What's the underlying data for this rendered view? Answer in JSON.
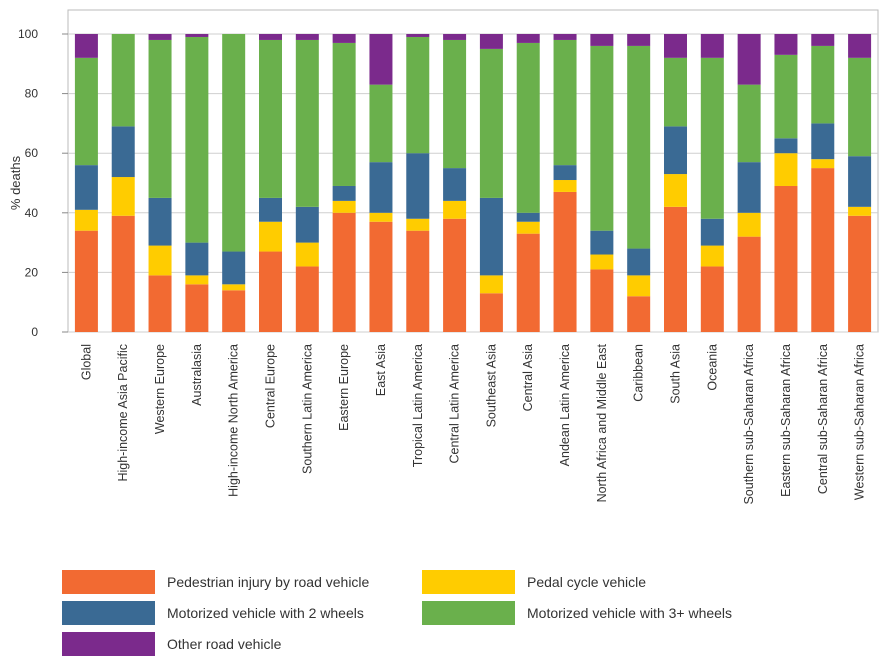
{
  "chart_data": {
    "type": "bar",
    "stacked": true,
    "ylabel": "% deaths",
    "xlabel": "",
    "ylim": [
      0,
      100
    ],
    "yticks": [
      0,
      20,
      40,
      60,
      80,
      100
    ],
    "grid": true,
    "legend_position": "bottom",
    "categories": [
      "Global",
      "High-income Asia Pacific",
      "Western Europe",
      "Australasia",
      "High-income North America",
      "Central Europe",
      "Southern Latin America",
      "Eastern Europe",
      "East Asia",
      "Tropical Latin America",
      "Central Latin America",
      "Southeast Asia",
      "Central Asia",
      "Andean Latin America",
      "North Africa and Middle East",
      "Caribbean",
      "South Asia",
      "Oceania",
      "Southern sub-Saharan Africa",
      "Eastern sub-Saharan Africa",
      "Central sub-Saharan Africa",
      "Western sub-Saharan Africa"
    ],
    "series": [
      {
        "name": "Pedestrian injury by road vehicle",
        "color": "#f26a32",
        "values": [
          34,
          39,
          19,
          16,
          14,
          27,
          22,
          40,
          37,
          34,
          38,
          13,
          33,
          47,
          21,
          12,
          42,
          22,
          32,
          49,
          55,
          39
        ]
      },
      {
        "name": "Pedal cycle vehicle",
        "color": "#ffcc00",
        "values": [
          7,
          13,
          10,
          3,
          2,
          10,
          8,
          4,
          3,
          4,
          6,
          6,
          4,
          4,
          5,
          7,
          11,
          7,
          8,
          11,
          3,
          3
        ]
      },
      {
        "name": "Motorized vehicle with 2 wheels",
        "color": "#3a6a94",
        "values": [
          15,
          17,
          16,
          11,
          11,
          8,
          12,
          5,
          17,
          22,
          11,
          26,
          3,
          5,
          8,
          9,
          16,
          9,
          17,
          5,
          12,
          17
        ]
      },
      {
        "name": "Motorized vehicle with 3+ wheels",
        "color": "#6ab04c",
        "values": [
          36,
          31,
          53,
          69,
          73,
          53,
          56,
          48,
          26,
          39,
          43,
          50,
          57,
          42,
          62,
          68,
          23,
          54,
          26,
          28,
          26,
          33
        ]
      },
      {
        "name": "Other road vehicle",
        "color": "#7b2a8c",
        "values": [
          8,
          0,
          2,
          1,
          0,
          2,
          2,
          3,
          17,
          1,
          2,
          5,
          3,
          2,
          4,
          4,
          8,
          8,
          17,
          7,
          4,
          8
        ]
      }
    ]
  }
}
